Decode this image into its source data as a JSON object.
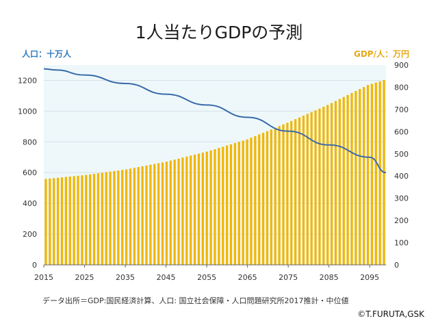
{
  "chart_data": {
    "type": "bar+line",
    "title": "1人当たりGDPの予測",
    "left_axis_label": "人口：十万人",
    "right_axis_label": "GDP/人：万円",
    "x_ticks": [
      2015,
      2025,
      2035,
      2045,
      2055,
      2065,
      2075,
      2085,
      2095
    ],
    "y_left_ticks": [
      0,
      200,
      400,
      600,
      800,
      1000,
      1200
    ],
    "y_right_ticks": [
      0,
      100,
      200,
      300,
      400,
      500,
      600,
      700,
      800,
      900
    ],
    "ylim_left": [
      0,
      1300
    ],
    "ylim_right": [
      0,
      900
    ],
    "xlim": [
      2015,
      2099
    ],
    "legend": "none",
    "grid": "horizontal",
    "colors": {
      "bars": "#f2b600",
      "line": "#3a6aa8",
      "plot_bg": "#eef8fb",
      "left_label": "#2e7bbf",
      "right_label": "#e6a817"
    },
    "series": [
      {
        "kind": "bar",
        "axis": "right",
        "x": [
          2015,
          2099
        ],
        "model": "interpolated-growth",
        "anchors": [
          [
            2015,
            387
          ],
          [
            2025,
            405
          ],
          [
            2035,
            430
          ],
          [
            2045,
            465
          ],
          [
            2055,
            510
          ],
          [
            2065,
            565
          ],
          [
            2075,
            640
          ],
          [
            2085,
            720
          ],
          [
            2095,
            810
          ],
          [
            2099,
            832
          ]
        ]
      },
      {
        "kind": "line",
        "axis": "left",
        "points": [
          [
            2015,
            1275
          ],
          [
            2018,
            1268
          ],
          [
            2025,
            1235
          ],
          [
            2035,
            1180
          ],
          [
            2045,
            1110
          ],
          [
            2055,
            1040
          ],
          [
            2065,
            960
          ],
          [
            2075,
            870
          ],
          [
            2085,
            780
          ],
          [
            2095,
            700
          ],
          [
            2099,
            600
          ]
        ]
      }
    ]
  },
  "source_note": "データ出所＝GDP:国民経済計算、人口: 国立社会保障・人口問題研究所2017推計・中位値",
  "copyright": "©T.FURUTA,GSK"
}
